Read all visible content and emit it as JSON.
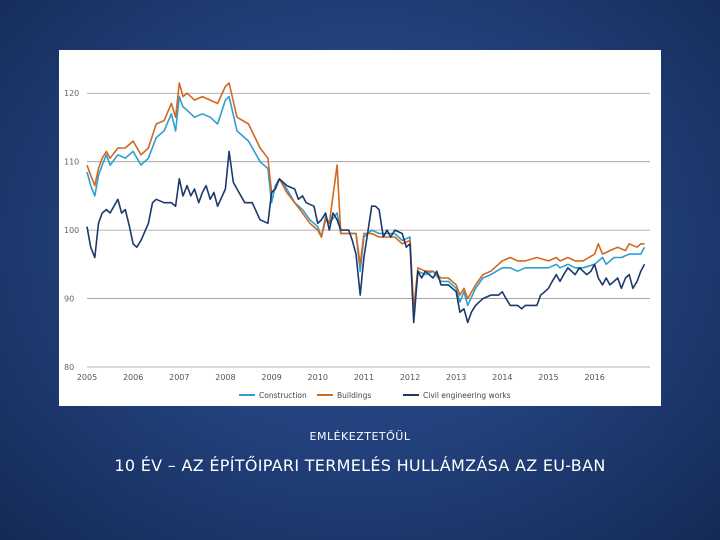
{
  "slide": {
    "kicker": "EMLÉKEZTETŐÜL",
    "title": "10 ÉV – AZ ÉPÍTŐIPARI TERMELÉS HULLÁMZÁSA AZ EU-BAN"
  },
  "chart_data": {
    "type": "line",
    "title": "",
    "xlabel": "",
    "ylabel": "",
    "ylim": [
      80,
      125
    ],
    "xlim": [
      2005,
      2017.2
    ],
    "yticks": [
      80,
      90,
      100,
      110,
      120
    ],
    "xticks": [
      2005,
      2006,
      2007,
      2008,
      2009,
      2010,
      2011,
      2012,
      2013,
      2014,
      2015,
      2016
    ],
    "grid": "horizontal",
    "legend_position": "bottom",
    "series": [
      {
        "name": "Construction",
        "color": "#2e9fd0",
        "points": [
          [
            2005.0,
            108.5
          ],
          [
            2005.08,
            106.5
          ],
          [
            2005.17,
            105
          ],
          [
            2005.25,
            108
          ],
          [
            2005.33,
            109.5
          ],
          [
            2005.42,
            111
          ],
          [
            2005.5,
            109.5
          ],
          [
            2005.67,
            111
          ],
          [
            2005.83,
            110.5
          ],
          [
            2006.0,
            111.5
          ],
          [
            2006.17,
            109.5
          ],
          [
            2006.33,
            110.5
          ],
          [
            2006.5,
            113.5
          ],
          [
            2006.67,
            114.5
          ],
          [
            2006.83,
            117
          ],
          [
            2006.92,
            114.5
          ],
          [
            2007.0,
            119.5
          ],
          [
            2007.08,
            118
          ],
          [
            2007.17,
            117.5
          ],
          [
            2007.33,
            116.5
          ],
          [
            2007.5,
            117
          ],
          [
            2007.67,
            116.5
          ],
          [
            2007.83,
            115.5
          ],
          [
            2008.0,
            119
          ],
          [
            2008.08,
            119.5
          ],
          [
            2008.25,
            114.5
          ],
          [
            2008.5,
            113
          ],
          [
            2008.75,
            110
          ],
          [
            2008.92,
            109
          ],
          [
            2009.0,
            104
          ],
          [
            2009.08,
            106.5
          ],
          [
            2009.17,
            107.5
          ],
          [
            2009.33,
            106
          ],
          [
            2009.5,
            104
          ],
          [
            2009.67,
            103
          ],
          [
            2009.83,
            101.5
          ],
          [
            2010.0,
            100.5
          ],
          [
            2010.08,
            99
          ],
          [
            2010.17,
            102
          ],
          [
            2010.25,
            101
          ],
          [
            2010.42,
            102.5
          ],
          [
            2010.5,
            99.5
          ],
          [
            2010.67,
            99.5
          ],
          [
            2010.83,
            99.5
          ],
          [
            2010.92,
            94
          ],
          [
            2011.0,
            99
          ],
          [
            2011.17,
            100
          ],
          [
            2011.33,
            99.5
          ],
          [
            2011.5,
            99.5
          ],
          [
            2011.67,
            99.5
          ],
          [
            2011.83,
            98.5
          ],
          [
            2012.0,
            99
          ],
          [
            2012.08,
            87.5
          ],
          [
            2012.17,
            94
          ],
          [
            2012.33,
            93.5
          ],
          [
            2012.5,
            94
          ],
          [
            2012.67,
            92.5
          ],
          [
            2012.83,
            92.5
          ],
          [
            2013.0,
            91.5
          ],
          [
            2013.08,
            89.5
          ],
          [
            2013.17,
            91
          ],
          [
            2013.25,
            89
          ],
          [
            2013.42,
            91.5
          ],
          [
            2013.58,
            93
          ],
          [
            2013.75,
            93.5
          ],
          [
            2014.0,
            94.5
          ],
          [
            2014.17,
            94.5
          ],
          [
            2014.33,
            94
          ],
          [
            2014.5,
            94.5
          ],
          [
            2014.75,
            94.5
          ],
          [
            2015.0,
            94.5
          ],
          [
            2015.17,
            95
          ],
          [
            2015.25,
            94.5
          ],
          [
            2015.42,
            95
          ],
          [
            2015.58,
            94.5
          ],
          [
            2015.75,
            94.5
          ],
          [
            2016.0,
            95
          ],
          [
            2016.17,
            96
          ],
          [
            2016.25,
            95
          ],
          [
            2016.42,
            96
          ],
          [
            2016.58,
            96
          ],
          [
            2016.75,
            96.5
          ],
          [
            2016.92,
            96.5
          ],
          [
            2017.0,
            96.5
          ],
          [
            2017.08,
            97.5
          ]
        ]
      },
      {
        "name": "Buildings",
        "color": "#d2691e",
        "points": [
          [
            2005.0,
            109.5
          ],
          [
            2005.08,
            108
          ],
          [
            2005.17,
            106.5
          ],
          [
            2005.25,
            109
          ],
          [
            2005.33,
            110.5
          ],
          [
            2005.42,
            111.5
          ],
          [
            2005.5,
            110.5
          ],
          [
            2005.67,
            112
          ],
          [
            2005.83,
            112
          ],
          [
            2006.0,
            113
          ],
          [
            2006.17,
            111
          ],
          [
            2006.33,
            112
          ],
          [
            2006.5,
            115.5
          ],
          [
            2006.67,
            116
          ],
          [
            2006.83,
            118.5
          ],
          [
            2006.92,
            116.5
          ],
          [
            2007.0,
            121.5
          ],
          [
            2007.08,
            119.5
          ],
          [
            2007.17,
            120
          ],
          [
            2007.33,
            119
          ],
          [
            2007.5,
            119.5
          ],
          [
            2007.67,
            119
          ],
          [
            2007.83,
            118.5
          ],
          [
            2008.0,
            121
          ],
          [
            2008.08,
            121.5
          ],
          [
            2008.25,
            116.5
          ],
          [
            2008.5,
            115.5
          ],
          [
            2008.75,
            112
          ],
          [
            2008.92,
            110.5
          ],
          [
            2009.0,
            105.5
          ],
          [
            2009.08,
            106
          ],
          [
            2009.17,
            107.5
          ],
          [
            2009.33,
            105.5
          ],
          [
            2009.5,
            104
          ],
          [
            2009.67,
            102.5
          ],
          [
            2009.83,
            101
          ],
          [
            2010.0,
            100
          ],
          [
            2010.08,
            99
          ],
          [
            2010.17,
            101.5
          ],
          [
            2010.25,
            101
          ],
          [
            2010.42,
            109.5
          ],
          [
            2010.5,
            99.5
          ],
          [
            2010.67,
            99.5
          ],
          [
            2010.83,
            99.5
          ],
          [
            2010.92,
            95
          ],
          [
            2011.0,
            99.5
          ],
          [
            2011.17,
            99.5
          ],
          [
            2011.33,
            99
          ],
          [
            2011.5,
            99
          ],
          [
            2011.67,
            99
          ],
          [
            2011.83,
            98
          ],
          [
            2012.0,
            98.5
          ],
          [
            2012.08,
            88.5
          ],
          [
            2012.17,
            94.5
          ],
          [
            2012.33,
            94
          ],
          [
            2012.5,
            94
          ],
          [
            2012.67,
            93
          ],
          [
            2012.83,
            93
          ],
          [
            2013.0,
            92
          ],
          [
            2013.08,
            90.5
          ],
          [
            2013.17,
            91.5
          ],
          [
            2013.25,
            90
          ],
          [
            2013.42,
            92
          ],
          [
            2013.58,
            93.5
          ],
          [
            2013.75,
            94
          ],
          [
            2014.0,
            95.5
          ],
          [
            2014.17,
            96
          ],
          [
            2014.33,
            95.5
          ],
          [
            2014.5,
            95.5
          ],
          [
            2014.75,
            96
          ],
          [
            2015.0,
            95.5
          ],
          [
            2015.17,
            96
          ],
          [
            2015.25,
            95.5
          ],
          [
            2015.42,
            96
          ],
          [
            2015.58,
            95.5
          ],
          [
            2015.75,
            95.5
          ],
          [
            2016.0,
            96.5
          ],
          [
            2016.08,
            98
          ],
          [
            2016.17,
            96.5
          ],
          [
            2016.33,
            97
          ],
          [
            2016.5,
            97.5
          ],
          [
            2016.67,
            97
          ],
          [
            2016.75,
            98
          ],
          [
            2016.92,
            97.5
          ],
          [
            2017.0,
            98
          ],
          [
            2017.08,
            98
          ]
        ]
      },
      {
        "name": "Civil engineering works",
        "color": "#1b3a6b",
        "points": [
          [
            2005.0,
            100.5
          ],
          [
            2005.08,
            97.5
          ],
          [
            2005.17,
            96
          ],
          [
            2005.25,
            101
          ],
          [
            2005.33,
            102.5
          ],
          [
            2005.42,
            103
          ],
          [
            2005.5,
            102.5
          ],
          [
            2005.67,
            104.5
          ],
          [
            2005.75,
            102.5
          ],
          [
            2005.83,
            103
          ],
          [
            2005.92,
            100.5
          ],
          [
            2006.0,
            98
          ],
          [
            2006.08,
            97.5
          ],
          [
            2006.17,
            98.5
          ],
          [
            2006.33,
            101
          ],
          [
            2006.42,
            104
          ],
          [
            2006.5,
            104.5
          ],
          [
            2006.67,
            104
          ],
          [
            2006.83,
            104
          ],
          [
            2006.92,
            103.5
          ],
          [
            2007.0,
            107.5
          ],
          [
            2007.08,
            105
          ],
          [
            2007.17,
            106.5
          ],
          [
            2007.25,
            105
          ],
          [
            2007.33,
            106
          ],
          [
            2007.42,
            104
          ],
          [
            2007.5,
            105.5
          ],
          [
            2007.58,
            106.5
          ],
          [
            2007.67,
            104.5
          ],
          [
            2007.75,
            105.5
          ],
          [
            2007.83,
            103.5
          ],
          [
            2008.0,
            106
          ],
          [
            2008.08,
            111.5
          ],
          [
            2008.17,
            107
          ],
          [
            2008.25,
            106
          ],
          [
            2008.42,
            104
          ],
          [
            2008.58,
            104
          ],
          [
            2008.75,
            101.5
          ],
          [
            2008.92,
            101
          ],
          [
            2009.0,
            105.5
          ],
          [
            2009.08,
            106
          ],
          [
            2009.17,
            107.5
          ],
          [
            2009.33,
            106.5
          ],
          [
            2009.5,
            106
          ],
          [
            2009.58,
            104.5
          ],
          [
            2009.67,
            105
          ],
          [
            2009.75,
            104
          ],
          [
            2009.92,
            103.5
          ],
          [
            2010.0,
            101
          ],
          [
            2010.08,
            101.5
          ],
          [
            2010.17,
            102.5
          ],
          [
            2010.25,
            100
          ],
          [
            2010.33,
            102.5
          ],
          [
            2010.42,
            101.5
          ],
          [
            2010.5,
            100
          ],
          [
            2010.58,
            100
          ],
          [
            2010.67,
            100
          ],
          [
            2010.75,
            98.5
          ],
          [
            2010.83,
            96.5
          ],
          [
            2010.92,
            90.5
          ],
          [
            2011.0,
            96
          ],
          [
            2011.08,
            99.5
          ],
          [
            2011.17,
            103.5
          ],
          [
            2011.25,
            103.5
          ],
          [
            2011.33,
            103
          ],
          [
            2011.42,
            99
          ],
          [
            2011.5,
            100
          ],
          [
            2011.58,
            99
          ],
          [
            2011.67,
            100
          ],
          [
            2011.83,
            99.5
          ],
          [
            2011.92,
            97.5
          ],
          [
            2012.0,
            98
          ],
          [
            2012.08,
            86.5
          ],
          [
            2012.17,
            94
          ],
          [
            2012.25,
            93
          ],
          [
            2012.33,
            94
          ],
          [
            2012.5,
            93
          ],
          [
            2012.58,
            94
          ],
          [
            2012.67,
            92
          ],
          [
            2012.83,
            92
          ],
          [
            2013.0,
            91
          ],
          [
            2013.08,
            88
          ],
          [
            2013.17,
            88.5
          ],
          [
            2013.25,
            86.5
          ],
          [
            2013.33,
            88
          ],
          [
            2013.42,
            89
          ],
          [
            2013.58,
            90
          ],
          [
            2013.75,
            90.5
          ],
          [
            2013.92,
            90.5
          ],
          [
            2014.0,
            91
          ],
          [
            2014.08,
            90
          ],
          [
            2014.17,
            89
          ],
          [
            2014.33,
            89
          ],
          [
            2014.42,
            88.5
          ],
          [
            2014.5,
            89
          ],
          [
            2014.67,
            89
          ],
          [
            2014.75,
            89
          ],
          [
            2014.83,
            90.5
          ],
          [
            2014.92,
            91
          ],
          [
            2015.0,
            91.5
          ],
          [
            2015.08,
            92.5
          ],
          [
            2015.17,
            93.5
          ],
          [
            2015.25,
            92.5
          ],
          [
            2015.33,
            93.5
          ],
          [
            2015.42,
            94.5
          ],
          [
            2015.5,
            94
          ],
          [
            2015.58,
            93.5
          ],
          [
            2015.67,
            94.5
          ],
          [
            2015.75,
            94
          ],
          [
            2015.83,
            93.5
          ],
          [
            2015.92,
            94
          ],
          [
            2016.0,
            95
          ],
          [
            2016.08,
            93
          ],
          [
            2016.17,
            92
          ],
          [
            2016.25,
            93
          ],
          [
            2016.33,
            92
          ],
          [
            2016.42,
            92.5
          ],
          [
            2016.5,
            93
          ],
          [
            2016.58,
            91.5
          ],
          [
            2016.67,
            93
          ],
          [
            2016.75,
            93.5
          ],
          [
            2016.83,
            91.5
          ],
          [
            2016.92,
            92.5
          ],
          [
            2017.0,
            94
          ],
          [
            2017.08,
            95
          ]
        ]
      }
    ]
  }
}
